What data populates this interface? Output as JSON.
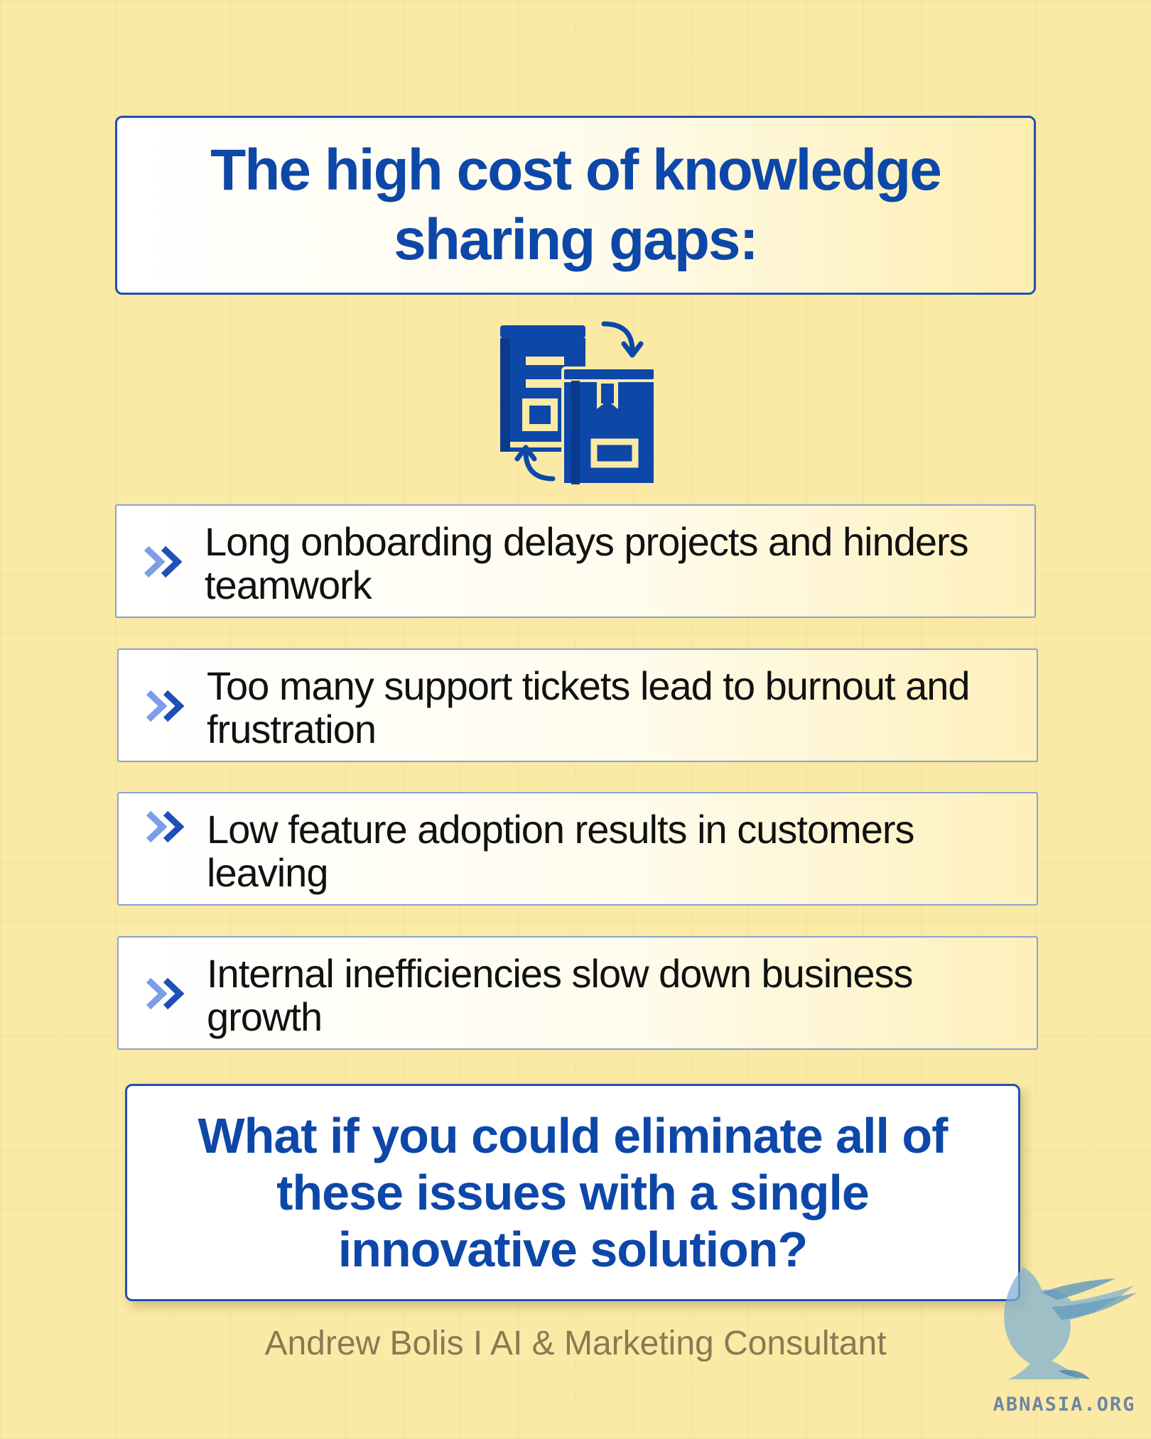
{
  "title": "The high cost of knowledge sharing gaps:",
  "hero_icon": "books-exchange-icon",
  "items": [
    {
      "text": "Long onboarding delays projects and hinders teamwork",
      "icon": "double-chevron-icon"
    },
    {
      "text": "Too many support tickets lead to burnout and frustration",
      "icon": "double-chevron-icon"
    },
    {
      "text": "Low feature adoption results in customers leaving",
      "icon": "double-chevron-icon"
    },
    {
      "text": "Internal inefficiencies slow down business growth",
      "icon": "double-chevron-icon"
    }
  ],
  "question": "What if you could eliminate all of these issues with a single innovative solution?",
  "footer": "Andrew Bolis I AI & Marketing Consultant",
  "watermark": {
    "text": "ABNASIA.ORG",
    "icon": "griffin-logo-icon"
  },
  "colors": {
    "background": "#fbe9a6",
    "accent_blue": "#0d47a8",
    "item_text": "#111111",
    "footer_text": "#8a7a52"
  }
}
